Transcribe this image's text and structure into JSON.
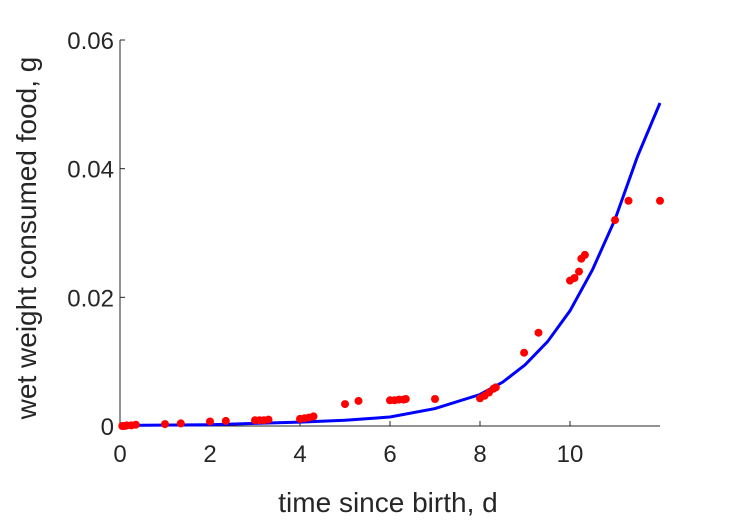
{
  "chart_data": {
    "type": "scatter",
    "xlabel": "time since birth, d",
    "ylabel": "wet weight consumed food, g",
    "xlim": [
      0,
      12
    ],
    "ylim": [
      0,
      0.06
    ],
    "xticks": [
      "0",
      "2",
      "4",
      "6",
      "8",
      "10"
    ],
    "yticks": [
      "0",
      "0.02",
      "0.04",
      "0.06"
    ],
    "grid": false,
    "legend": "none",
    "series": [
      {
        "kind": "scatter",
        "color": "#ff0000",
        "points": [
          [
            0.05,
            0.0
          ],
          [
            0.1,
            0.0
          ],
          [
            0.15,
            0.0001
          ],
          [
            0.25,
            0.0001
          ],
          [
            0.35,
            0.0002
          ],
          [
            1.0,
            0.0003
          ],
          [
            1.35,
            0.0004
          ],
          [
            2.0,
            0.0007
          ],
          [
            2.35,
            0.0008
          ],
          [
            3.0,
            0.0009
          ],
          [
            3.1,
            0.0009
          ],
          [
            3.2,
            0.0009
          ],
          [
            3.3,
            0.001
          ],
          [
            4.0,
            0.0011
          ],
          [
            4.1,
            0.0012
          ],
          [
            4.2,
            0.0013
          ],
          [
            4.3,
            0.0015
          ],
          [
            5.0,
            0.0034
          ],
          [
            5.3,
            0.0039
          ],
          [
            6.0,
            0.004
          ],
          [
            6.1,
            0.004
          ],
          [
            6.2,
            0.0041
          ],
          [
            6.3,
            0.0041
          ],
          [
            6.35,
            0.0042
          ],
          [
            7.0,
            0.0042
          ],
          [
            8.0,
            0.0043
          ],
          [
            8.1,
            0.0047
          ],
          [
            8.2,
            0.0052
          ],
          [
            8.3,
            0.0058
          ],
          [
            8.35,
            0.006
          ],
          [
            8.98,
            0.0114
          ],
          [
            9.3,
            0.0145
          ],
          [
            10.0,
            0.0226
          ],
          [
            10.1,
            0.023
          ],
          [
            10.2,
            0.024
          ],
          [
            10.25,
            0.026
          ],
          [
            10.33,
            0.0266
          ],
          [
            11.0,
            0.032
          ],
          [
            11.3,
            0.035
          ],
          [
            12.0,
            0.035
          ]
        ]
      },
      {
        "kind": "line",
        "color": "#0000ff",
        "points": [
          [
            0.0,
            0.0001
          ],
          [
            2.0,
            0.0002
          ],
          [
            4.0,
            0.0006
          ],
          [
            5.0,
            0.0009
          ],
          [
            6.0,
            0.0014
          ],
          [
            7.0,
            0.0027
          ],
          [
            8.0,
            0.0049
          ],
          [
            8.5,
            0.0068
          ],
          [
            9.0,
            0.0095
          ],
          [
            9.5,
            0.0131
          ],
          [
            10.0,
            0.0179
          ],
          [
            10.5,
            0.0243
          ],
          [
            11.0,
            0.0321
          ],
          [
            11.5,
            0.0419
          ],
          [
            12.0,
            0.0502
          ]
        ]
      }
    ]
  }
}
